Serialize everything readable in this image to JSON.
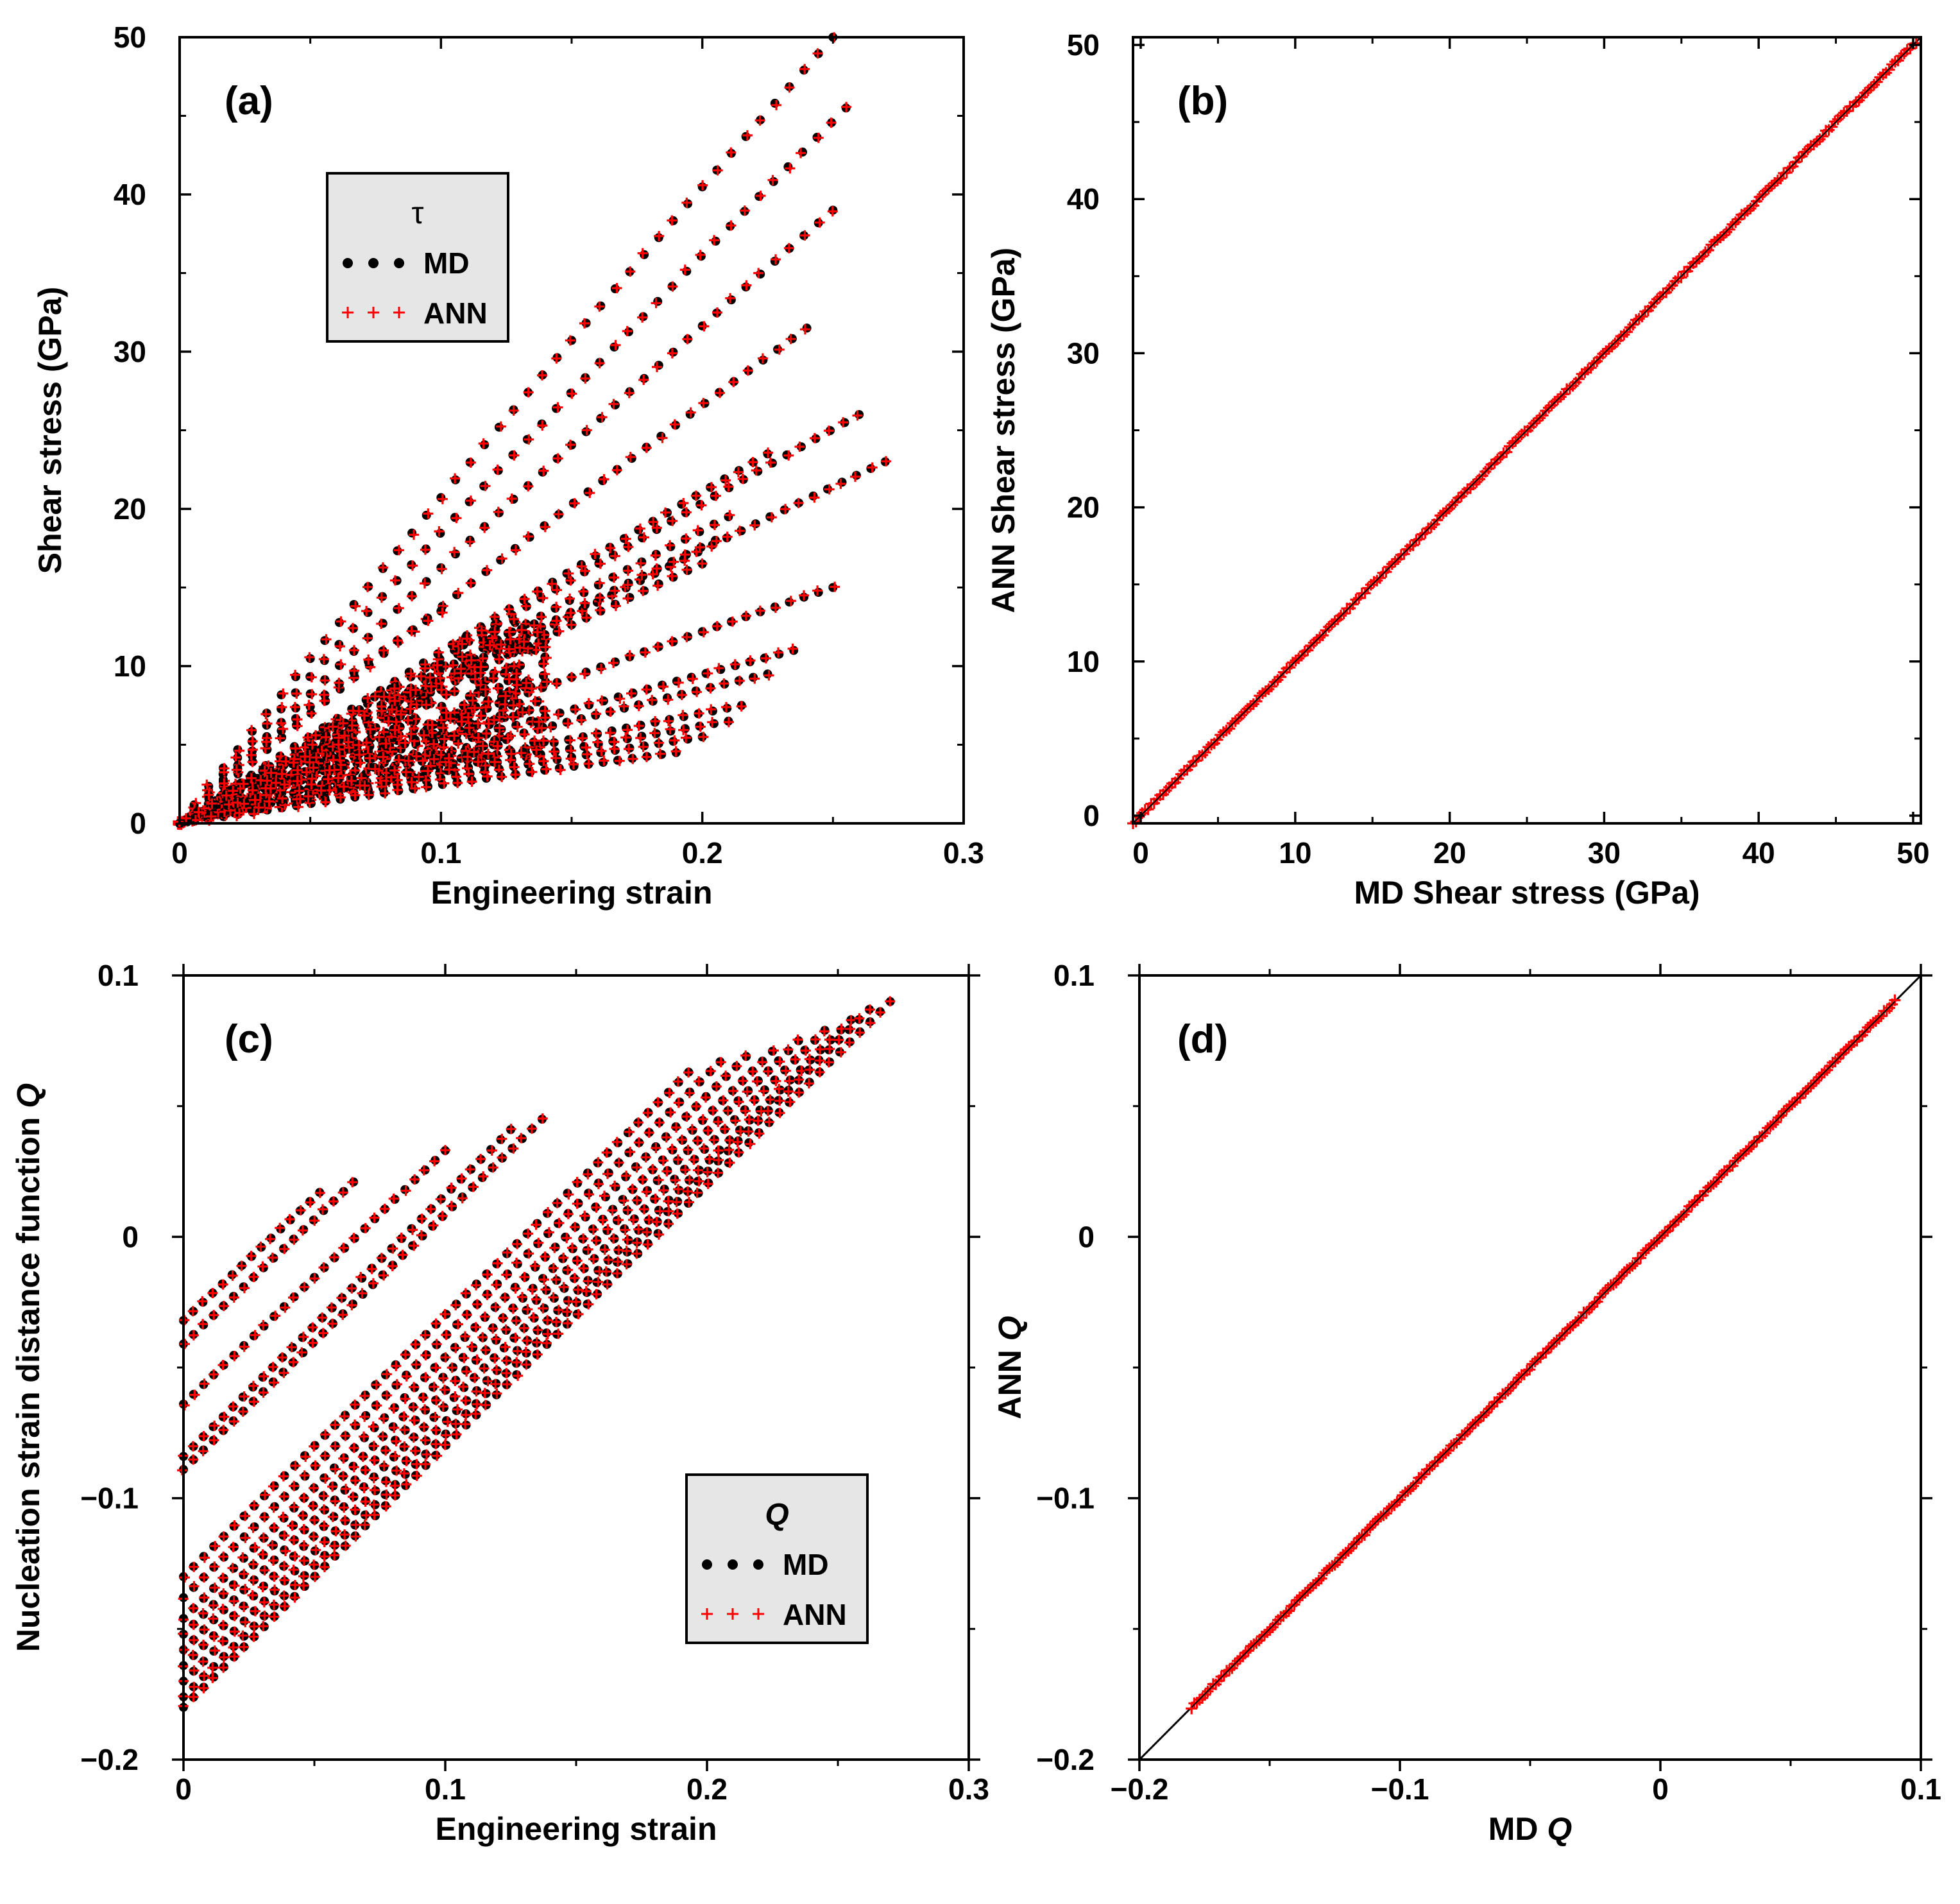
{
  "figure": {
    "colors": {
      "md": "#000000",
      "ann": "#ff0000",
      "legend_bg": "#e6e6e6",
      "identity_line": "#000000"
    }
  },
  "chart_data": [
    {
      "panel": "(a)",
      "type": "scatter",
      "xlabel": "Engineering strain",
      "ylabel": "Shear stress (GPa)",
      "xlim": [
        0,
        0.3
      ],
      "ylim": [
        0,
        50
      ],
      "xticks": [
        0,
        0.1,
        0.2,
        0.3
      ],
      "xtick_labels": [
        "0",
        "0.1",
        "0.2",
        "0.3"
      ],
      "yticks": [
        0,
        10,
        20,
        30,
        40,
        50
      ],
      "ytick_labels": [
        "0",
        "10",
        "20",
        "30",
        "40",
        "50"
      ],
      "legend": {
        "title": "τ",
        "entries": [
          "MD",
          "ANN"
        ],
        "placement": "upper-left"
      },
      "series_note": "Each curve sampled from MD (black dots) and ANN (red +); listed endpoints in data units",
      "curves": [
        {
          "end_x": 0.25,
          "end_y": 50,
          "curv": 0.06
        },
        {
          "end_x": 0.255,
          "end_y": 45.5,
          "curv": 0.06
        },
        {
          "end_x": 0.25,
          "end_y": 39,
          "curv": 0.07
        },
        {
          "end_x": 0.24,
          "end_y": 31.5,
          "curv": 0.08
        },
        {
          "end_x": 0.26,
          "end_y": 26,
          "curv": 0.08
        },
        {
          "end_x": 0.27,
          "end_y": 23,
          "curv": 0.08
        },
        {
          "end_x": 0.225,
          "end_y": 23.5,
          "curv": 0.08
        },
        {
          "end_x": 0.21,
          "end_y": 19.5,
          "curv": 0.08
        },
        {
          "end_x": 0.205,
          "end_y": 18,
          "curv": 0.08
        },
        {
          "end_x": 0.2,
          "end_y": 16.5,
          "curv": 0.08
        },
        {
          "end_x": 0.25,
          "end_y": 15,
          "curv": 0.08
        },
        {
          "end_x": 0.1,
          "end_y": 13.5,
          "curv": 0.2
        },
        {
          "end_x": 0.235,
          "end_y": 11,
          "curv": 0.08
        },
        {
          "end_x": 0.225,
          "end_y": 9.5,
          "curv": 0.08
        },
        {
          "end_x": 0.215,
          "end_y": 7.5,
          "curv": 0.08
        },
        {
          "end_x": 0.21,
          "end_y": 6.5,
          "curv": 0.08
        },
        {
          "end_x": 0.2,
          "end_y": 5.5,
          "curv": 0.08
        },
        {
          "end_x": 0.19,
          "end_y": 4.5,
          "curv": 0.08
        },
        {
          "end_x": 0.14,
          "end_y": 9,
          "curv": 0.1
        },
        {
          "end_x": 0.13,
          "end_y": 7,
          "curv": 0.1
        },
        {
          "end_x": 0.12,
          "end_y": 5,
          "curv": 0.1
        },
        {
          "end_x": 0.1,
          "end_y": 8.5,
          "curv": 0.1
        },
        {
          "end_x": 0.09,
          "end_y": 6.5,
          "curv": 0.1
        },
        {
          "end_x": 0.08,
          "end_y": 4.5,
          "curv": 0.1
        },
        {
          "end_x": 0.07,
          "end_y": 2.5,
          "curv": 0.1
        }
      ]
    },
    {
      "panel": "(b)",
      "type": "scatter",
      "xlabel": "MD Shear stress (GPa)",
      "ylabel": "ANN Shear stress (GPa)",
      "xlim": [
        -0.5,
        50.5
      ],
      "ylim": [
        -0.5,
        50.5
      ],
      "xticks": [
        0,
        10,
        20,
        30,
        40,
        50
      ],
      "xtick_labels": [
        "0",
        "10",
        "20",
        "30",
        "40",
        "50"
      ],
      "yticks": [
        0,
        10,
        20,
        30,
        40,
        50
      ],
      "ytick_labels": [
        "0",
        "10",
        "20",
        "30",
        "40",
        "50"
      ],
      "identity_line": [
        [
          -0.5,
          -0.5
        ],
        [
          50.5,
          50.5
        ]
      ],
      "data_range": [
        -0.5,
        50.2
      ]
    },
    {
      "panel": "(c)",
      "type": "scatter",
      "xlabel": "Engineering strain",
      "ylabel_prefix": "Nucleation strain distance function ",
      "ylabel_italic": "Q",
      "xlim": [
        0,
        0.3
      ],
      "ylim": [
        -0.2,
        0.1
      ],
      "xticks": [
        0,
        0.1,
        0.2,
        0.3
      ],
      "xtick_labels": [
        "0",
        "0.1",
        "0.2",
        "0.3"
      ],
      "yticks": [
        -0.2,
        -0.1,
        0,
        0.1
      ],
      "ytick_labels": [
        "−0.2",
        "−0.1",
        "0",
        "0.1"
      ],
      "legend": {
        "title": "Q",
        "entries": [
          "MD",
          "ANN"
        ],
        "placement": "lower-right"
      },
      "lines": [
        {
          "x0": 0,
          "y0": -0.032,
          "x1": 0.052,
          "y1": 0.017
        },
        {
          "x0": 0,
          "y0": -0.041,
          "x1": 0.065,
          "y1": 0.021
        },
        {
          "x0": 0,
          "y0": -0.064,
          "x1": 0.1,
          "y1": 0.033
        },
        {
          "x0": 0,
          "y0": -0.084,
          "x1": 0.125,
          "y1": 0.041
        },
        {
          "x0": 0,
          "y0": -0.089,
          "x1": 0.137,
          "y1": 0.045
        },
        {
          "x0": 0,
          "y0": -0.13,
          "x1": 0.193,
          "y1": 0.063
        },
        {
          "x0": 0,
          "y0": -0.138,
          "x1": 0.205,
          "y1": 0.067
        },
        {
          "x0": 0,
          "y0": -0.146,
          "x1": 0.215,
          "y1": 0.069
        },
        {
          "x0": 0,
          "y0": -0.152,
          "x1": 0.225,
          "y1": 0.071
        },
        {
          "x0": 0,
          "y0": -0.158,
          "x1": 0.235,
          "y1": 0.075
        },
        {
          "x0": 0,
          "y0": -0.164,
          "x1": 0.245,
          "y1": 0.079
        },
        {
          "x0": 0,
          "y0": -0.17,
          "x1": 0.255,
          "y1": 0.083
        },
        {
          "x0": 0,
          "y0": -0.176,
          "x1": 0.262,
          "y1": 0.087
        },
        {
          "x0": 0,
          "y0": -0.18,
          "x1": 0.27,
          "y1": 0.09
        }
      ]
    },
    {
      "panel": "(d)",
      "type": "scatter",
      "xlabel_prefix": "MD ",
      "xlabel_italic": "Q",
      "ylabel_prefix": "ANN ",
      "ylabel_italic": "Q",
      "xlim": [
        -0.2,
        0.1
      ],
      "ylim": [
        -0.2,
        0.1
      ],
      "xticks": [
        -0.2,
        -0.1,
        0,
        0.1
      ],
      "xtick_labels": [
        "−0.2",
        "−0.1",
        "0",
        "0.1"
      ],
      "yticks": [
        -0.2,
        -0.1,
        0,
        0.1
      ],
      "ytick_labels": [
        "−0.2",
        "−0.1",
        "0",
        "0.1"
      ],
      "identity_line": [
        [
          -0.2,
          -0.2
        ],
        [
          0.1,
          0.1
        ]
      ],
      "data_range": [
        -0.18,
        0.09
      ]
    }
  ]
}
